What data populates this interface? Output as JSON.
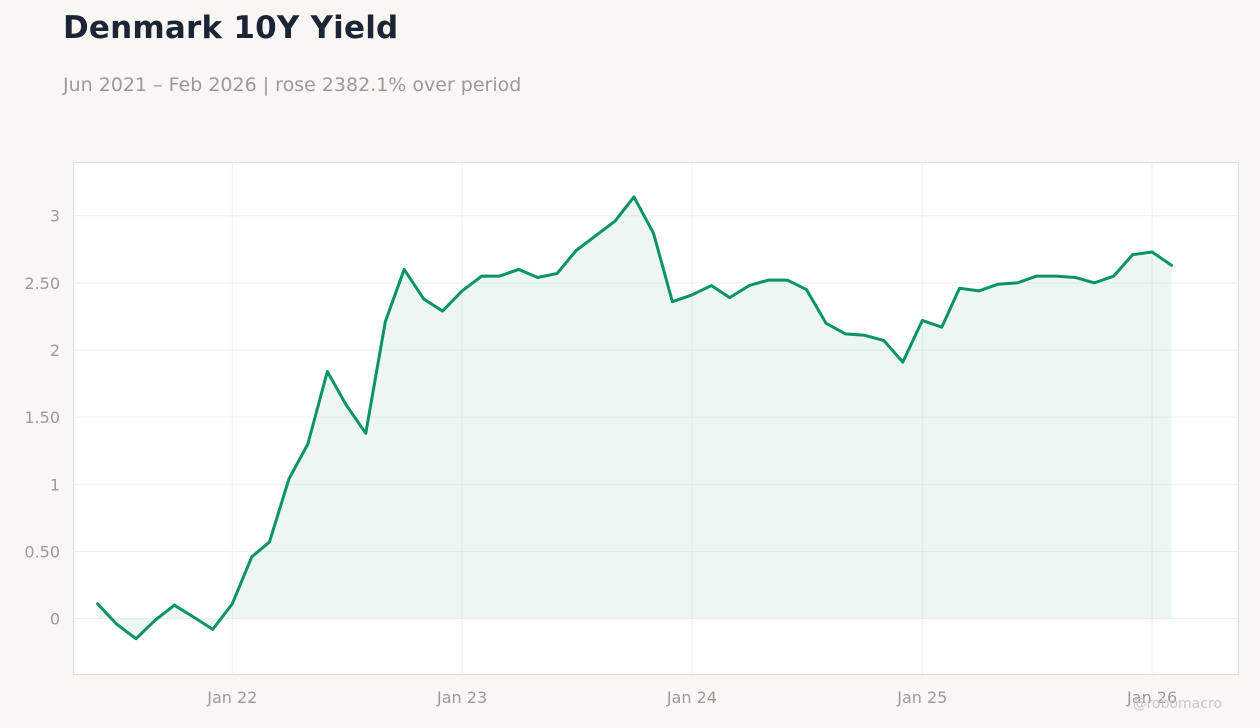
{
  "header": {
    "title": "Denmark 10Y Yield",
    "subtitle": "Jun 2021 – Feb 2026 | rose 2382.1% over period"
  },
  "watermark": "@robomacro",
  "colors": {
    "line": "#0a9466",
    "fill": "#e8f4ef",
    "grid": "#efefef",
    "frame": "#dedede",
    "plot_bg": "#ffffff",
    "page_bg": "#f8f7f4",
    "tick_text": "#9a9a9a",
    "title_text": "#1c2536"
  },
  "chart_data": {
    "type": "area",
    "title": "Denmark 10Y Yield",
    "subtitle": "Jun 2021 – Feb 2026 | rose 2382.1% over period",
    "xlabel": "",
    "ylabel": "",
    "grid": true,
    "legend": "none",
    "x_ticks": [
      {
        "date": "2022-01-01",
        "label": "Jan 22"
      },
      {
        "date": "2023-01-01",
        "label": "Jan 23"
      },
      {
        "date": "2024-01-01",
        "label": "Jan 24"
      },
      {
        "date": "2025-01-01",
        "label": "Jan 25"
      },
      {
        "date": "2026-01-01",
        "label": "Jan 26"
      }
    ],
    "y_ticks": [
      {
        "value": 0,
        "label": "0"
      },
      {
        "value": 0.5,
        "label": "0.50"
      },
      {
        "value": 1,
        "label": "1"
      },
      {
        "value": 1.5,
        "label": "1.50"
      },
      {
        "value": 2,
        "label": "2"
      },
      {
        "value": 2.5,
        "label": "2.50"
      },
      {
        "value": 3,
        "label": "3"
      }
    ],
    "xlim": [
      "2021-04-23",
      "2026-05-19"
    ],
    "ylim": [
      -0.42,
      3.4
    ],
    "series": [
      {
        "points": [
          [
            "2021-06-01",
            0.11
          ],
          [
            "2021-07-01",
            -0.04
          ],
          [
            "2021-08-01",
            -0.15
          ],
          [
            "2021-09-01",
            -0.01
          ],
          [
            "2021-10-01",
            0.1
          ],
          [
            "2021-11-01",
            0.01
          ],
          [
            "2021-12-01",
            -0.08
          ],
          [
            "2022-01-01",
            0.11
          ],
          [
            "2022-02-01",
            0.46
          ],
          [
            "2022-03-01",
            0.57
          ],
          [
            "2022-04-01",
            1.04
          ],
          [
            "2022-05-01",
            1.3
          ],
          [
            "2022-06-01",
            1.84
          ],
          [
            "2022-07-01",
            1.59
          ],
          [
            "2022-08-01",
            1.38
          ],
          [
            "2022-09-01",
            2.21
          ],
          [
            "2022-10-01",
            2.6
          ],
          [
            "2022-11-01",
            2.38
          ],
          [
            "2022-12-01",
            2.29
          ],
          [
            "2023-01-01",
            2.44
          ],
          [
            "2023-02-01",
            2.55
          ],
          [
            "2023-03-01",
            2.55
          ],
          [
            "2023-04-01",
            2.6
          ],
          [
            "2023-05-01",
            2.54
          ],
          [
            "2023-06-01",
            2.57
          ],
          [
            "2023-07-01",
            2.74
          ],
          [
            "2023-08-01",
            2.85
          ],
          [
            "2023-09-01",
            2.96
          ],
          [
            "2023-10-01",
            3.14
          ],
          [
            "2023-11-01",
            2.87
          ],
          [
            "2023-12-01",
            2.36
          ],
          [
            "2024-01-01",
            2.41
          ],
          [
            "2024-02-01",
            2.48
          ],
          [
            "2024-03-01",
            2.39
          ],
          [
            "2024-04-01",
            2.48
          ],
          [
            "2024-05-01",
            2.52
          ],
          [
            "2024-06-01",
            2.52
          ],
          [
            "2024-07-01",
            2.45
          ],
          [
            "2024-08-01",
            2.2
          ],
          [
            "2024-09-01",
            2.12
          ],
          [
            "2024-10-01",
            2.11
          ],
          [
            "2024-11-01",
            2.07
          ],
          [
            "2024-12-01",
            1.91
          ],
          [
            "2025-01-01",
            2.22
          ],
          [
            "2025-02-01",
            2.17
          ],
          [
            "2025-03-01",
            2.46
          ],
          [
            "2025-04-01",
            2.44
          ],
          [
            "2025-05-01",
            2.49
          ],
          [
            "2025-06-01",
            2.5
          ],
          [
            "2025-07-01",
            2.55
          ],
          [
            "2025-08-01",
            2.55
          ],
          [
            "2025-09-01",
            2.54
          ],
          [
            "2025-10-01",
            2.5
          ],
          [
            "2025-11-01",
            2.55
          ],
          [
            "2025-12-01",
            2.71
          ],
          [
            "2026-01-01",
            2.73
          ],
          [
            "2026-02-01",
            2.63
          ]
        ]
      }
    ]
  }
}
